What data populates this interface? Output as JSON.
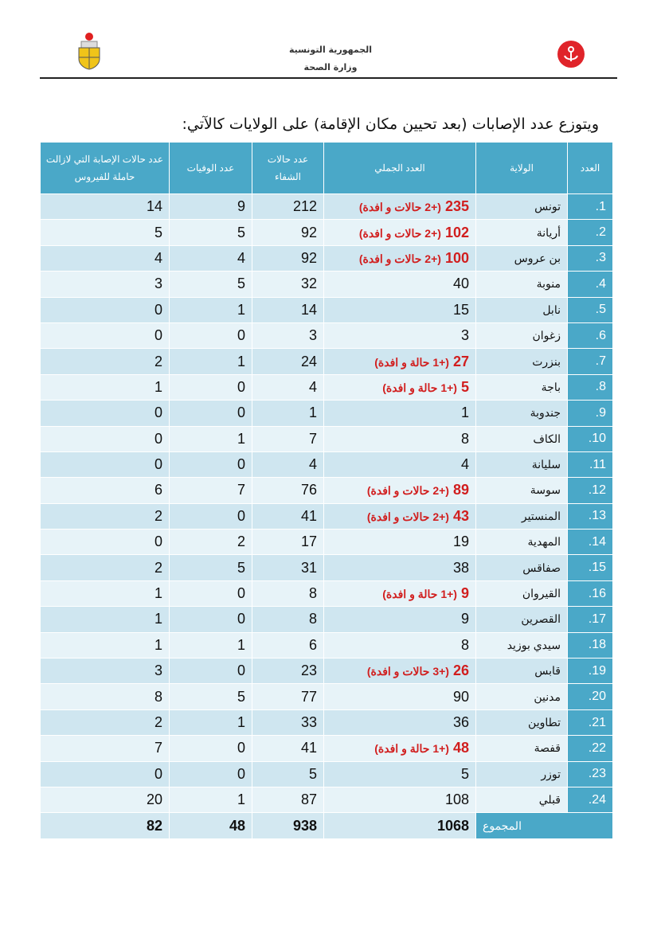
{
  "header": {
    "line1": "الجمهورية التونسية",
    "line2": "وزارة الصحة"
  },
  "title": "ويتوزع عدد الإصابات (بعد تحيين مكان الإقامة) على الولايات كالآتي:",
  "columns": {
    "number": "العدد",
    "governorate": "الولاية",
    "total": "العدد الجملي",
    "recovered": "عدد حالات الشفاء",
    "deaths": "عدد الوفيات",
    "active": "عدد حالات الإصابة التي لازالت حاملة للفيروس"
  },
  "rows": [
    {
      "n": "1.",
      "gov": "تونس",
      "total": "235",
      "note": "(+2 حالات و افدة)",
      "recovered": "212",
      "deaths": "9",
      "active": "14"
    },
    {
      "n": "2.",
      "gov": "أريانة",
      "total": "102",
      "note": "(+2 حالات و افدة)",
      "recovered": "92",
      "deaths": "5",
      "active": "5"
    },
    {
      "n": "3.",
      "gov": "بن عروس",
      "total": "100",
      "note": "(+2 حالات و افدة)",
      "recovered": "92",
      "deaths": "4",
      "active": "4"
    },
    {
      "n": "4.",
      "gov": "منوبة",
      "total": "40",
      "note": "",
      "recovered": "32",
      "deaths": "5",
      "active": "3"
    },
    {
      "n": "5.",
      "gov": "نابل",
      "total": "15",
      "note": "",
      "recovered": "14",
      "deaths": "1",
      "active": "0"
    },
    {
      "n": "6.",
      "gov": "زغوان",
      "total": "3",
      "note": "",
      "recovered": "3",
      "deaths": "0",
      "active": "0"
    },
    {
      "n": "7.",
      "gov": "بنزرت",
      "total": "27",
      "note": "(+1 حالة و افدة)",
      "recovered": "24",
      "deaths": "1",
      "active": "2"
    },
    {
      "n": "8.",
      "gov": "باجة",
      "total": "5",
      "note": "(+1 حالة و افدة)",
      "recovered": "4",
      "deaths": "0",
      "active": "1"
    },
    {
      "n": "9.",
      "gov": "جندوبة",
      "total": "1",
      "note": "",
      "recovered": "1",
      "deaths": "0",
      "active": "0"
    },
    {
      "n": "10.",
      "gov": "الكاف",
      "total": "8",
      "note": "",
      "recovered": "7",
      "deaths": "1",
      "active": "0"
    },
    {
      "n": "11.",
      "gov": "سليانة",
      "total": "4",
      "note": "",
      "recovered": "4",
      "deaths": "0",
      "active": "0"
    },
    {
      "n": "12.",
      "gov": "سوسة",
      "total": "89",
      "note": "(+2 حالات و افدة)",
      "recovered": "76",
      "deaths": "7",
      "active": "6"
    },
    {
      "n": "13.",
      "gov": "المنستير",
      "total": "43",
      "note": "(+2 حالات و افدة)",
      "recovered": "41",
      "deaths": "0",
      "active": "2"
    },
    {
      "n": "14.",
      "gov": "المهدية",
      "total": "19",
      "note": "",
      "recovered": "17",
      "deaths": "2",
      "active": "0"
    },
    {
      "n": "15.",
      "gov": "صفاقس",
      "total": "38",
      "note": "",
      "recovered": "31",
      "deaths": "5",
      "active": "2"
    },
    {
      "n": "16.",
      "gov": "القيروان",
      "total": "9",
      "note": "(+1 حالة و افدة)",
      "recovered": "8",
      "deaths": "0",
      "active": "1"
    },
    {
      "n": "17.",
      "gov": "القصرين",
      "total": "9",
      "note": "",
      "recovered": "8",
      "deaths": "0",
      "active": "1"
    },
    {
      "n": "18.",
      "gov": "سيدي بوزيد",
      "total": "8",
      "note": "",
      "recovered": "6",
      "deaths": "1",
      "active": "1"
    },
    {
      "n": "19.",
      "gov": "قابس",
      "total": "26",
      "note": "(+3 حالات و افدة)",
      "recovered": "23",
      "deaths": "0",
      "active": "3"
    },
    {
      "n": "20.",
      "gov": "مدنين",
      "total": "90",
      "note": "",
      "recovered": "77",
      "deaths": "5",
      "active": "8"
    },
    {
      "n": "21.",
      "gov": "تطاوين",
      "total": "36",
      "note": "",
      "recovered": "33",
      "deaths": "1",
      "active": "2"
    },
    {
      "n": "22.",
      "gov": "قفصة",
      "total": "48",
      "note": "(+1 حالة و افدة)",
      "recovered": "41",
      "deaths": "0",
      "active": "7"
    },
    {
      "n": "23.",
      "gov": "توزر",
      "total": "5",
      "note": "",
      "recovered": "5",
      "deaths": "0",
      "active": "0"
    },
    {
      "n": "24.",
      "gov": "قبلي",
      "total": "108",
      "note": "",
      "recovered": "87",
      "deaths": "1",
      "active": "20"
    }
  ],
  "totals": {
    "label": "المجموع",
    "total": "1068",
    "recovered": "938",
    "deaths": "48",
    "active": "82"
  },
  "colors": {
    "header": "#4aa8c8",
    "highlight": "#d11e1e"
  }
}
